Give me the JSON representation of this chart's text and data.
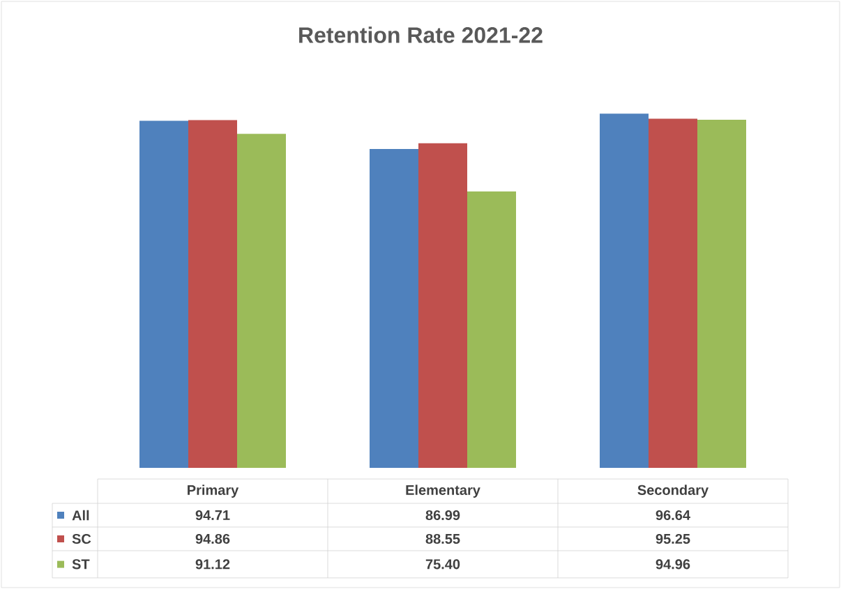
{
  "chart_data": {
    "type": "bar",
    "title": "Retention Rate 2021-22",
    "categories": [
      "Primary",
      "Elementary",
      "Secondary"
    ],
    "legend": "bottom",
    "series": [
      {
        "name": "All",
        "color": "#4f81bd",
        "values": [
          94.71,
          86.99,
          96.64
        ],
        "value_labels": [
          "94.71",
          "86.99",
          "96.64"
        ]
      },
      {
        "name": "SC",
        "color": "#c0504d",
        "values": [
          94.86,
          88.55,
          95.25
        ],
        "value_labels": [
          "94.86",
          "88.55",
          "95.25"
        ]
      },
      {
        "name": "ST",
        "color": "#9bbb59",
        "values": [
          91.12,
          75.4,
          94.96
        ],
        "value_labels": [
          "91.12",
          "75.40",
          "94.96"
        ]
      }
    ]
  }
}
